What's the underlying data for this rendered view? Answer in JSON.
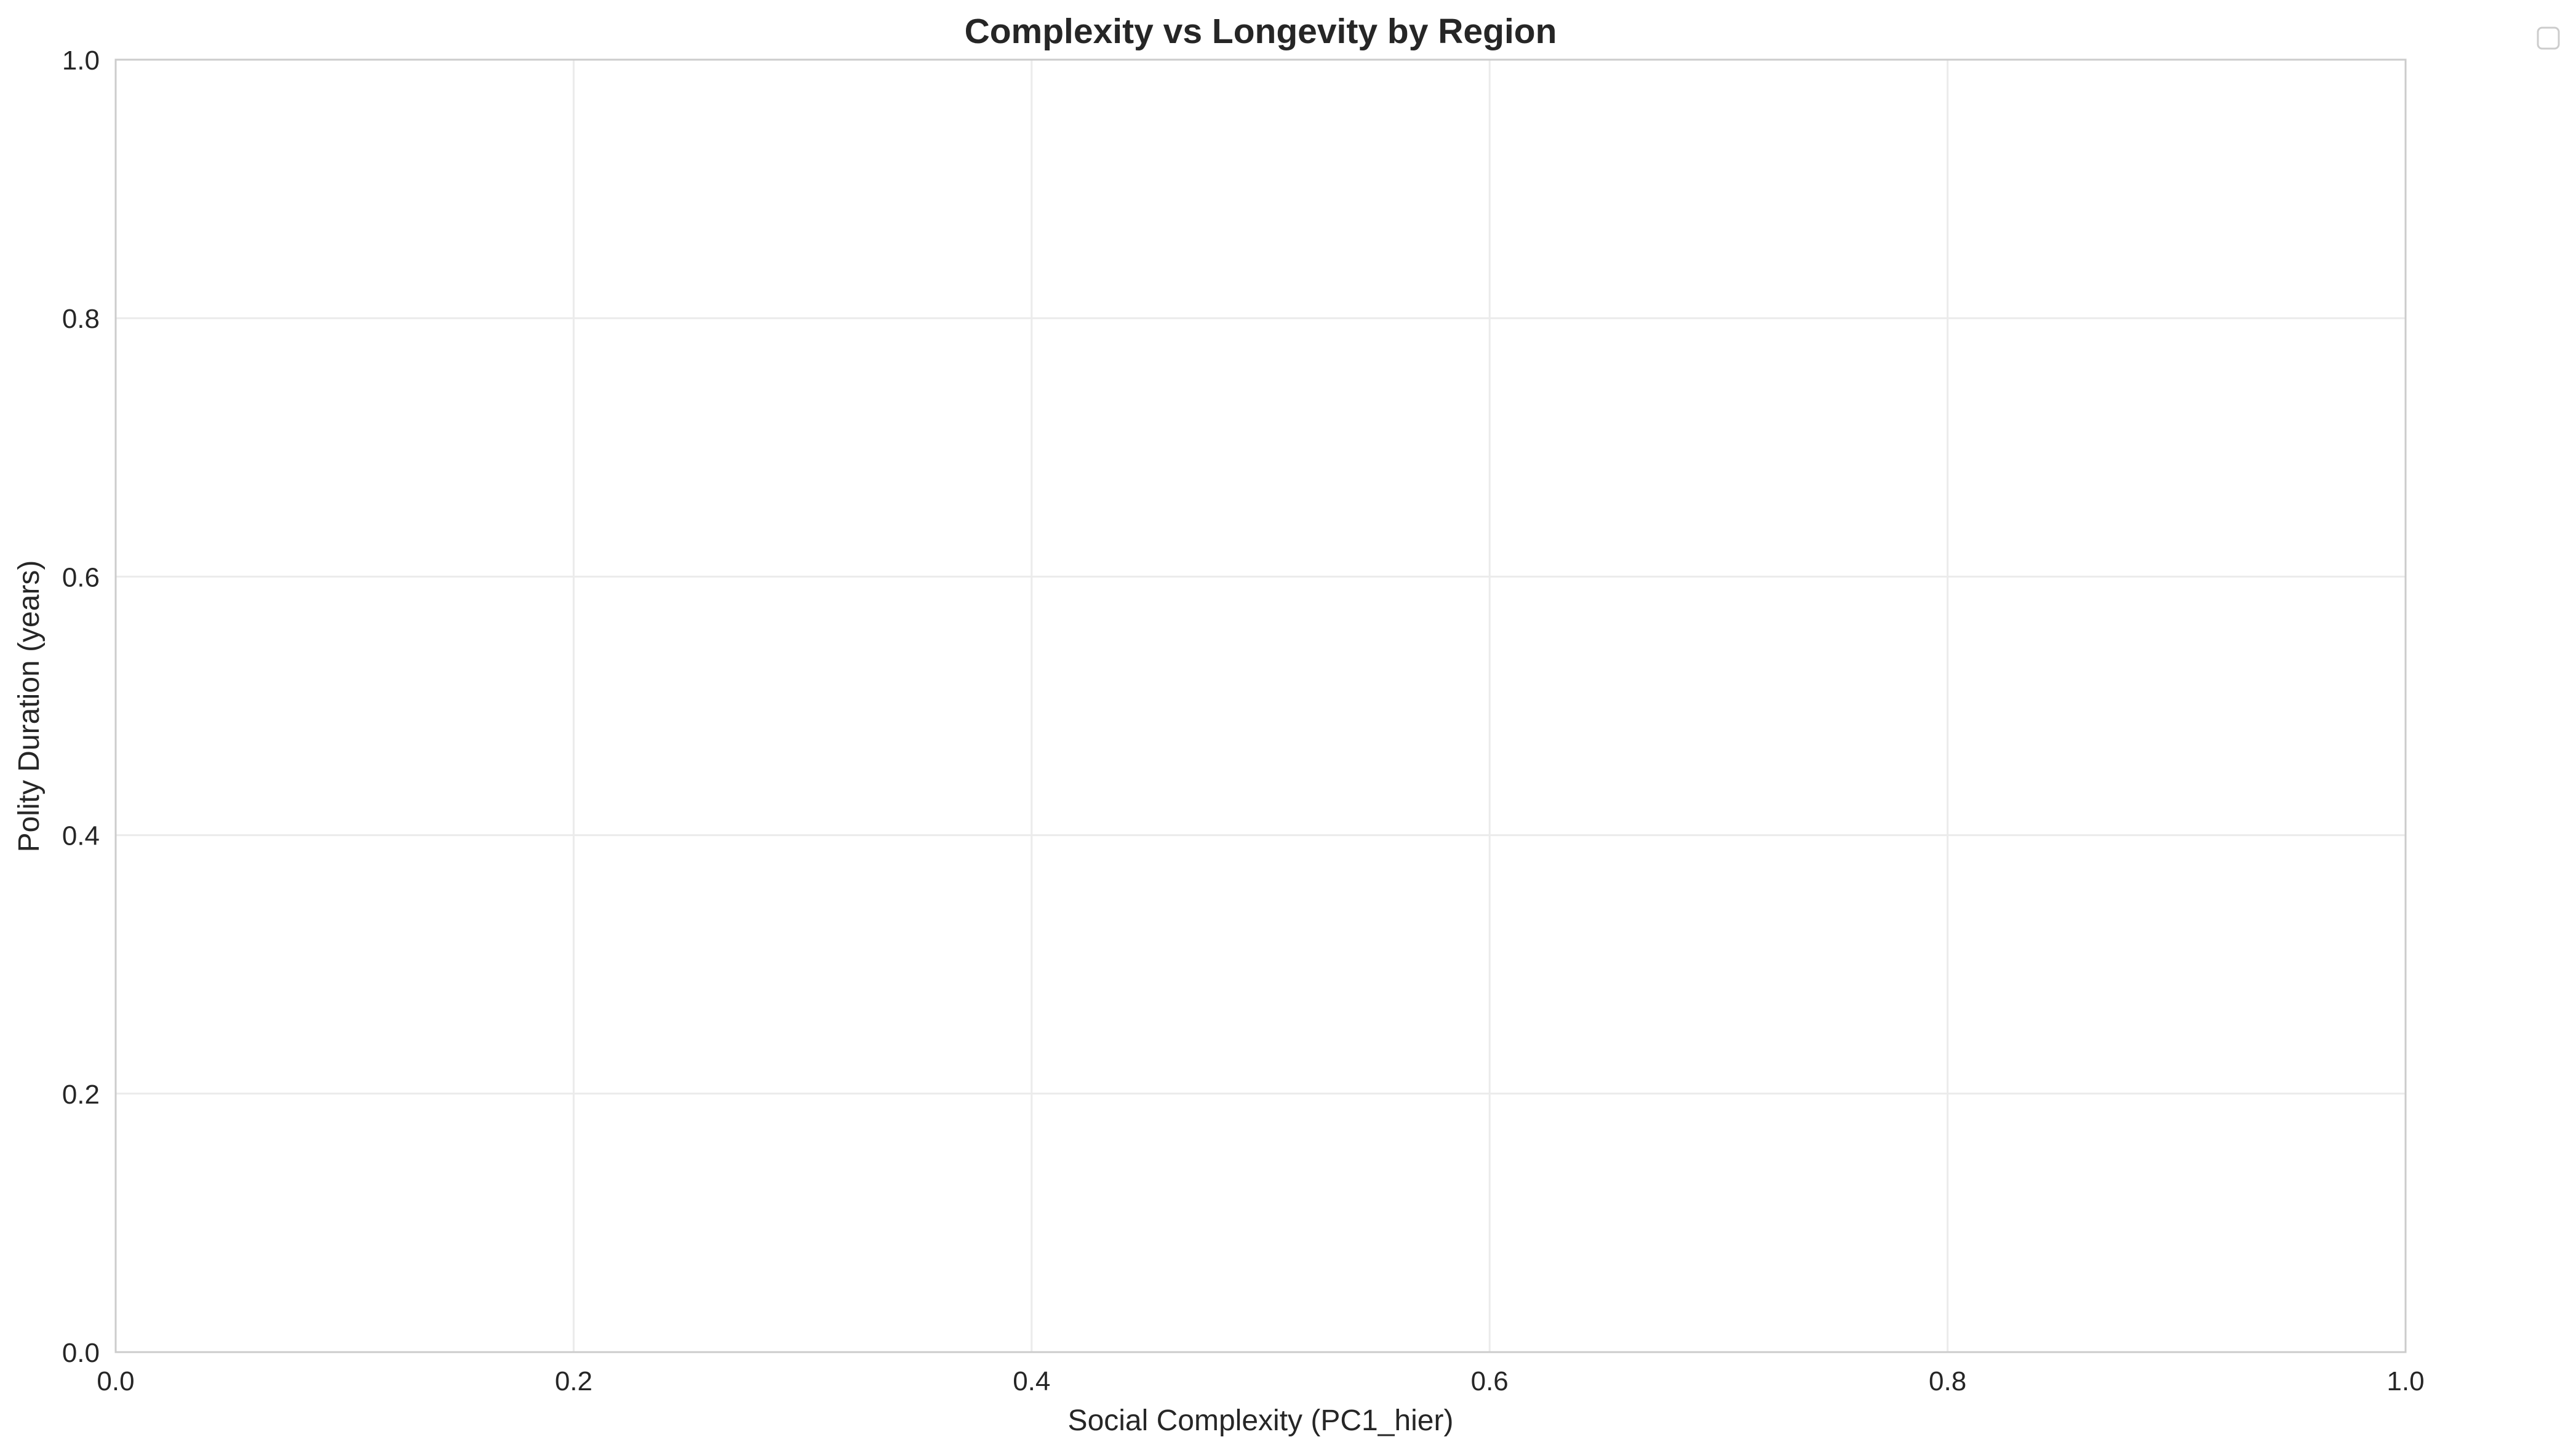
{
  "chart_data": {
    "type": "scatter",
    "title": "Complexity vs Longevity by Region",
    "xlabel": "Social Complexity (PC1_hier)",
    "ylabel": "Polity Duration (years)",
    "xlim": [
      0.0,
      1.0
    ],
    "ylim": [
      0.0,
      1.0
    ],
    "x_ticks": [
      "0.0",
      "0.2",
      "0.4",
      "0.6",
      "0.8",
      "1.0"
    ],
    "y_ticks": [
      "0.0",
      "0.2",
      "0.4",
      "0.6",
      "0.8",
      "1.0"
    ],
    "grid": true,
    "legend": {
      "placement": "outside-top-right",
      "entries": []
    },
    "series": [],
    "colors": {
      "background": "#ffffff",
      "grid": "#ebebeb",
      "spine": "#cccccc",
      "text": "#262626",
      "legend_border": "#cccccc"
    }
  }
}
